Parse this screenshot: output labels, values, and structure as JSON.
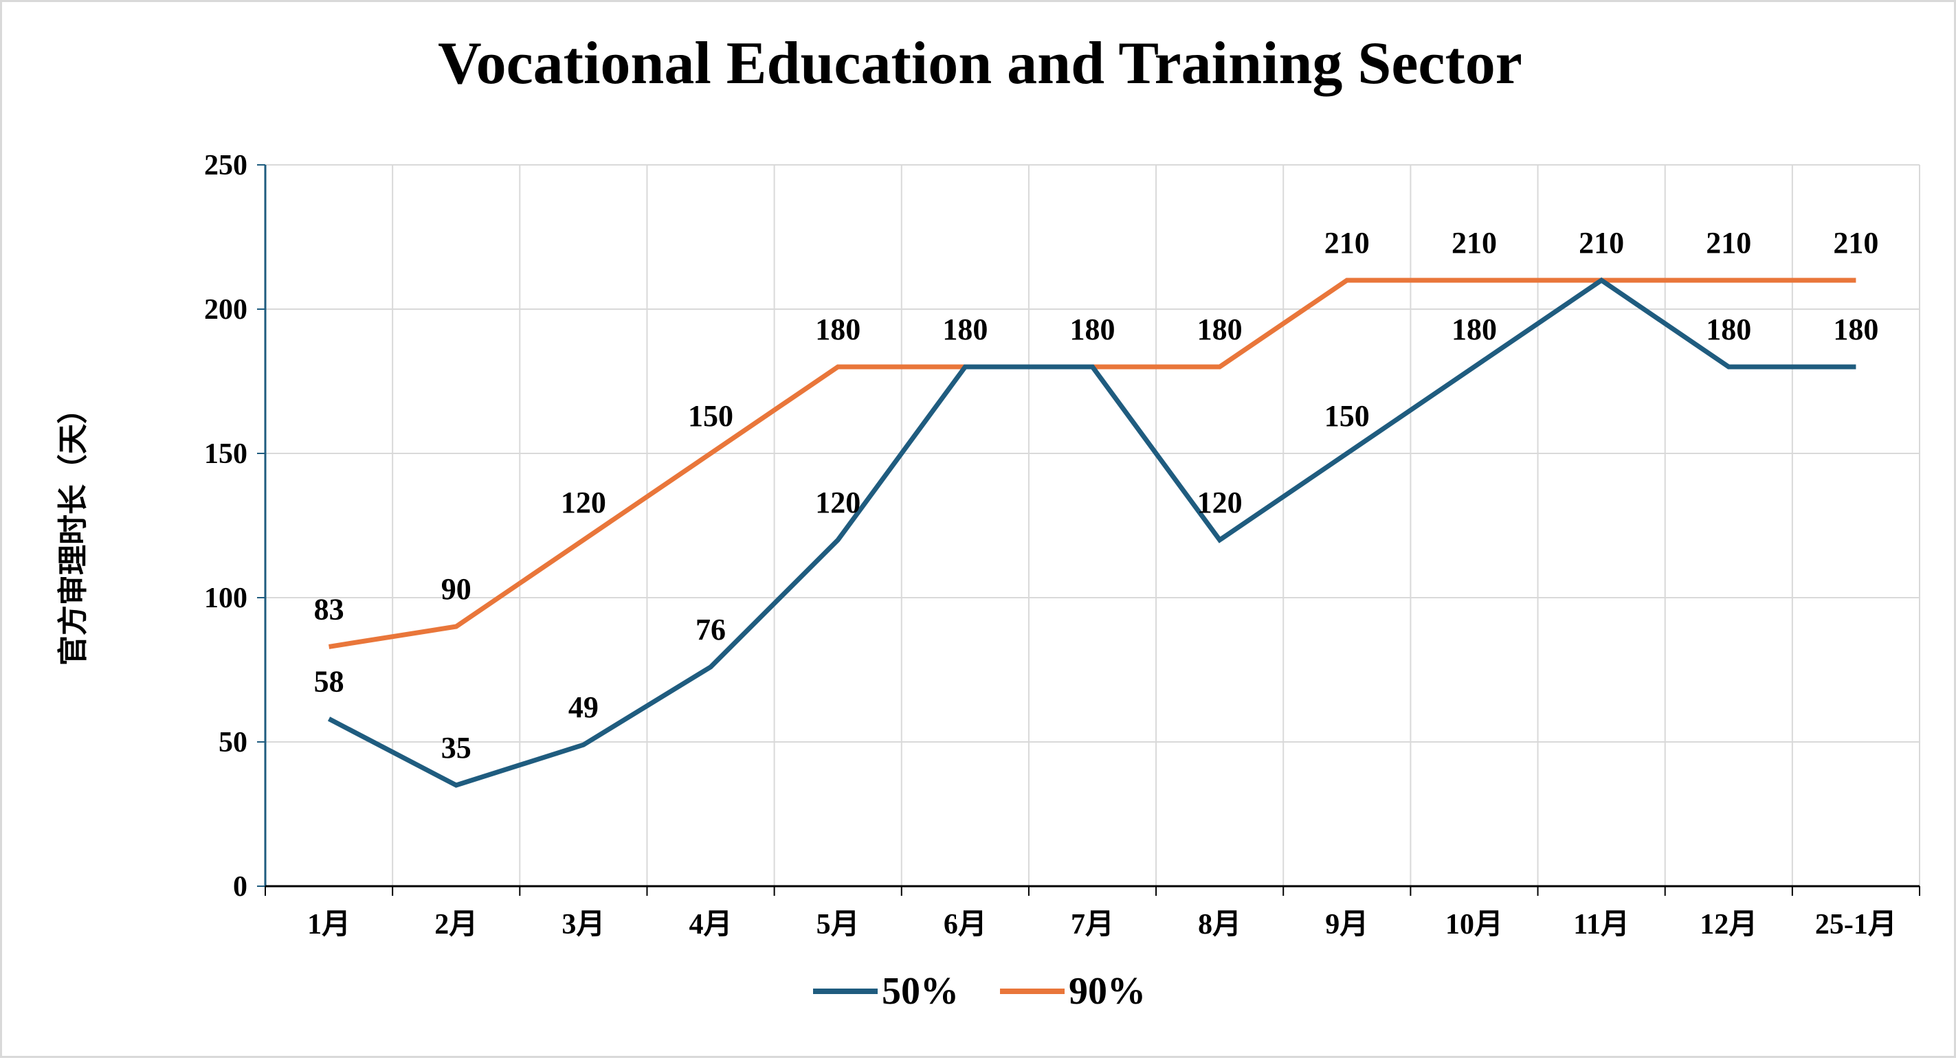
{
  "chart_data": {
    "type": "line",
    "title": "Vocational Education and Training Sector",
    "xlabel": "",
    "ylabel": "官方审理时长（天）",
    "categories": [
      "1月",
      "2月",
      "3月",
      "4月",
      "5月",
      "6月",
      "7月",
      "8月",
      "9月",
      "10月",
      "11月",
      "12月",
      "25-1月"
    ],
    "ylim": [
      0,
      250
    ],
    "yticks": [
      "0",
      "50",
      "100",
      "150",
      "200",
      "250"
    ],
    "grid": true,
    "legend_position": "bottom",
    "series": [
      {
        "name": "50%",
        "color": "#1f5c7f",
        "values": [
          58,
          35,
          49,
          76,
          120,
          180,
          180,
          120,
          150,
          180,
          210,
          180,
          180
        ],
        "labels": [
          "58",
          "35",
          "49",
          "76",
          "120",
          "",
          "",
          "120",
          "150",
          "180",
          "",
          "180",
          "180"
        ]
      },
      {
        "name": "90%",
        "color": "#e9763a",
        "values": [
          83,
          90,
          120,
          150,
          180,
          180,
          180,
          180,
          210,
          210,
          210,
          210,
          210
        ],
        "labels": [
          "83",
          "90",
          "120",
          "150",
          "180",
          "180",
          "180",
          "180",
          "210",
          "210",
          "210",
          "210",
          "210"
        ]
      }
    ]
  }
}
